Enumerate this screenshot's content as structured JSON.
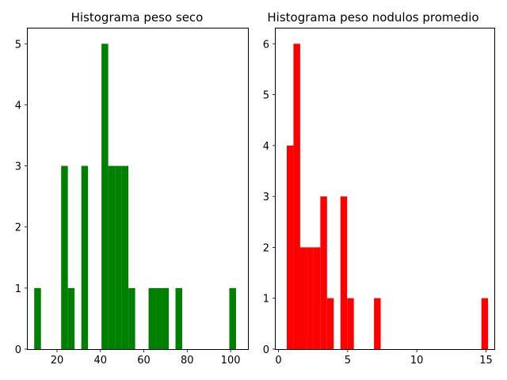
{
  "chart_data": [
    {
      "type": "bar",
      "title": "Histograma peso seco",
      "xlabel": "",
      "ylabel": "",
      "color": "#008000",
      "xlim": [
        6.5,
        108
      ],
      "ylim": [
        0,
        5.25
      ],
      "xticks": [
        20,
        40,
        60,
        80,
        100
      ],
      "yticks": [
        0,
        1,
        2,
        3,
        4,
        5
      ],
      "bin_width": 3.1,
      "bins": [
        {
          "x0": 9.5,
          "count": 1
        },
        {
          "x0": 21.9,
          "count": 3
        },
        {
          "x0": 25.0,
          "count": 1
        },
        {
          "x0": 31.2,
          "count": 3
        },
        {
          "x0": 40.5,
          "count": 5
        },
        {
          "x0": 43.6,
          "count": 3
        },
        {
          "x0": 46.7,
          "count": 3
        },
        {
          "x0": 49.8,
          "count": 3
        },
        {
          "x0": 52.9,
          "count": 1
        },
        {
          "x0": 62.2,
          "count": 1
        },
        {
          "x0": 65.3,
          "count": 1
        },
        {
          "x0": 68.4,
          "count": 1
        },
        {
          "x0": 74.6,
          "count": 1
        },
        {
          "x0": 99.4,
          "count": 1
        }
      ]
    },
    {
      "type": "bar",
      "title": "Histograma peso nodulos promedio",
      "xlabel": "",
      "ylabel": "",
      "color": "#ff0000",
      "xlim": [
        -0.2,
        15.6
      ],
      "ylim": [
        0,
        6.3
      ],
      "xticks": [
        0,
        5,
        10,
        15
      ],
      "yticks": [
        0,
        1,
        2,
        3,
        4,
        5,
        6
      ],
      "bin_width": 0.485,
      "bins": [
        {
          "x0": 0.6,
          "count": 4
        },
        {
          "x0": 1.085,
          "count": 6
        },
        {
          "x0": 1.57,
          "count": 2
        },
        {
          "x0": 2.055,
          "count": 2
        },
        {
          "x0": 2.54,
          "count": 2
        },
        {
          "x0": 3.025,
          "count": 3
        },
        {
          "x0": 3.51,
          "count": 1
        },
        {
          "x0": 4.48,
          "count": 3
        },
        {
          "x0": 4.965,
          "count": 1
        },
        {
          "x0": 6.905,
          "count": 1
        },
        {
          "x0": 14.665,
          "count": 1
        }
      ]
    }
  ]
}
